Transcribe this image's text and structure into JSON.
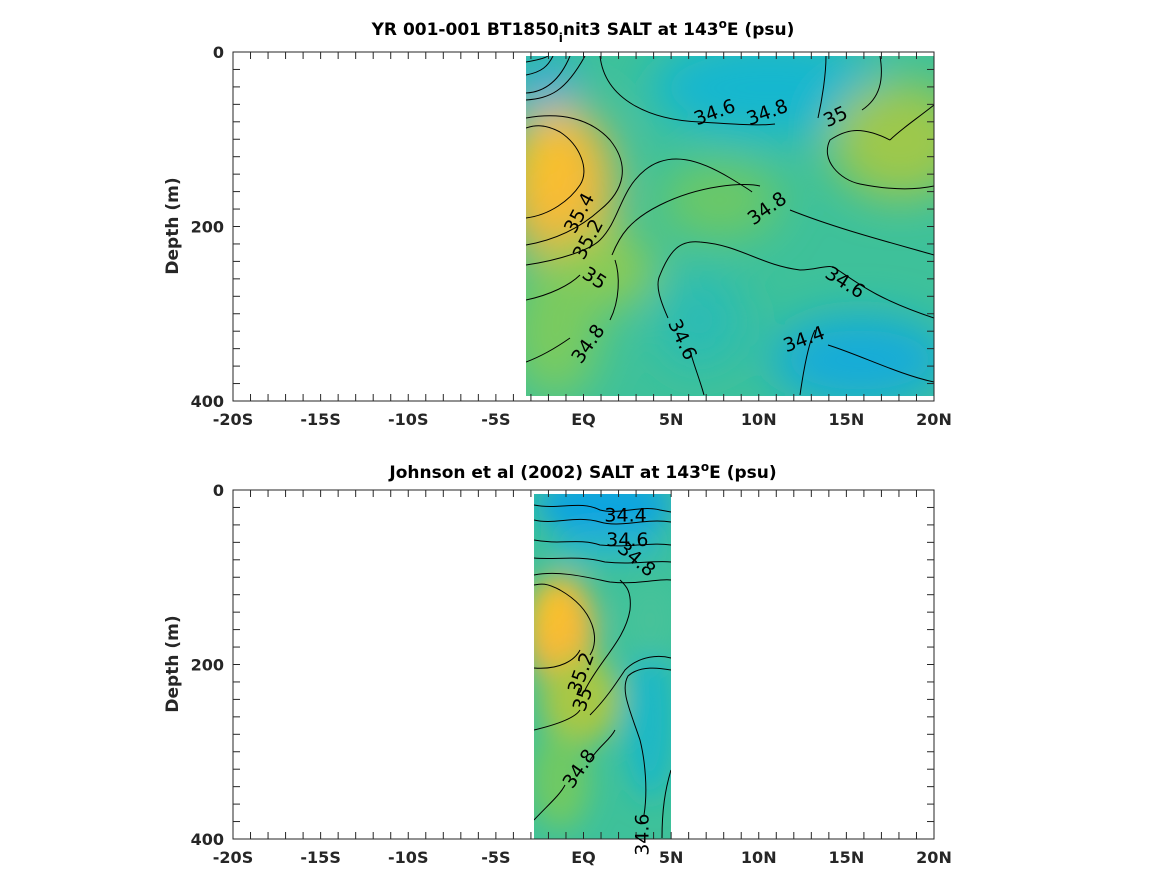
{
  "chart_data": [
    {
      "type": "heatmap",
      "title_main": "YR 001-001 BT1850",
      "title_sub": "i",
      "title_rest": "nit3 SALT at 143",
      "title_sup": "o",
      "title_end": "E (psu)",
      "xlabel": "",
      "ylabel": "Depth (m)",
      "xlim": [
        -20,
        20
      ],
      "ylim": [
        400,
        0
      ],
      "x_ticks": [
        -20,
        -15,
        -10,
        -5,
        0,
        5,
        10,
        15,
        20
      ],
      "x_tick_labels": [
        "-20S",
        "-15S",
        "-10S",
        "-5S",
        "EQ",
        "5N",
        "10N",
        "15N",
        "20N"
      ],
      "y_ticks": [
        0,
        200,
        400
      ],
      "y_tick_labels": [
        "0",
        "200",
        "400"
      ],
      "data_extent_x": [
        -3.3,
        20
      ],
      "data_extent_y": [
        5,
        395
      ],
      "colormap": [
        "#0aa0e0",
        "#1cb8cc",
        "#38c0a0",
        "#7acb5e",
        "#c7c234",
        "#f5b838",
        "#f9c12a"
      ],
      "salinity_range": [
        34.2,
        35.5
      ],
      "contour_labels": [
        {
          "text": "34.6",
          "x": 7.5,
          "y": 70
        },
        {
          "text": "34.8",
          "x": 10.5,
          "y": 70
        },
        {
          "text": "35",
          "x": 14.4,
          "y": 75
        },
        {
          "text": "35.4",
          "x": -0.2,
          "y": 185
        },
        {
          "text": "35.2",
          "x": 0.3,
          "y": 215
        },
        {
          "text": "34.8",
          "x": 10.5,
          "y": 180
        },
        {
          "text": "35",
          "x": 0.6,
          "y": 260
        },
        {
          "text": "34.6",
          "x": 14.9,
          "y": 265
        },
        {
          "text": "34.8",
          "x": 0.3,
          "y": 335
        },
        {
          "text": "34.6",
          "x": 5.6,
          "y": 330
        },
        {
          "text": "34.4",
          "x": 12.6,
          "y": 330
        }
      ]
    },
    {
      "type": "heatmap",
      "title_main": "Johnson et al (2002) SALT at 143",
      "title_sup": "o",
      "title_end": "E (psu)",
      "xlabel": "",
      "ylabel": "Depth (m)",
      "xlim": [
        -20,
        20
      ],
      "ylim": [
        400,
        0
      ],
      "x_ticks": [
        -20,
        -15,
        -10,
        -5,
        0,
        5,
        10,
        15,
        20
      ],
      "x_tick_labels": [
        "-20S",
        "-15S",
        "-10S",
        "-5S",
        "EQ",
        "5N",
        "10N",
        "15N",
        "20N"
      ],
      "y_ticks": [
        0,
        200,
        400
      ],
      "y_tick_labels": [
        "0",
        "200",
        "400"
      ],
      "data_extent_x": [
        -2.8,
        5
      ],
      "data_extent_y": [
        5,
        400
      ],
      "colormap": [
        "#0aa0e0",
        "#1cb8cc",
        "#38c0a0",
        "#7acb5e",
        "#c7c234",
        "#f5b838",
        "#f9c12a"
      ],
      "salinity_range": [
        34.2,
        35.5
      ],
      "contour_labels": [
        {
          "text": "34.4",
          "x": 2.4,
          "y": 30
        },
        {
          "text": "34.6",
          "x": 2.5,
          "y": 58
        },
        {
          "text": "34.8",
          "x": 3.0,
          "y": 80
        },
        {
          "text": "35.2",
          "x": -0.1,
          "y": 210
        },
        {
          "text": "35",
          "x": 0.0,
          "y": 240
        },
        {
          "text": "34.8",
          "x": -0.2,
          "y": 320
        },
        {
          "text": "34.6",
          "x": 3.4,
          "y": 395
        }
      ]
    }
  ]
}
